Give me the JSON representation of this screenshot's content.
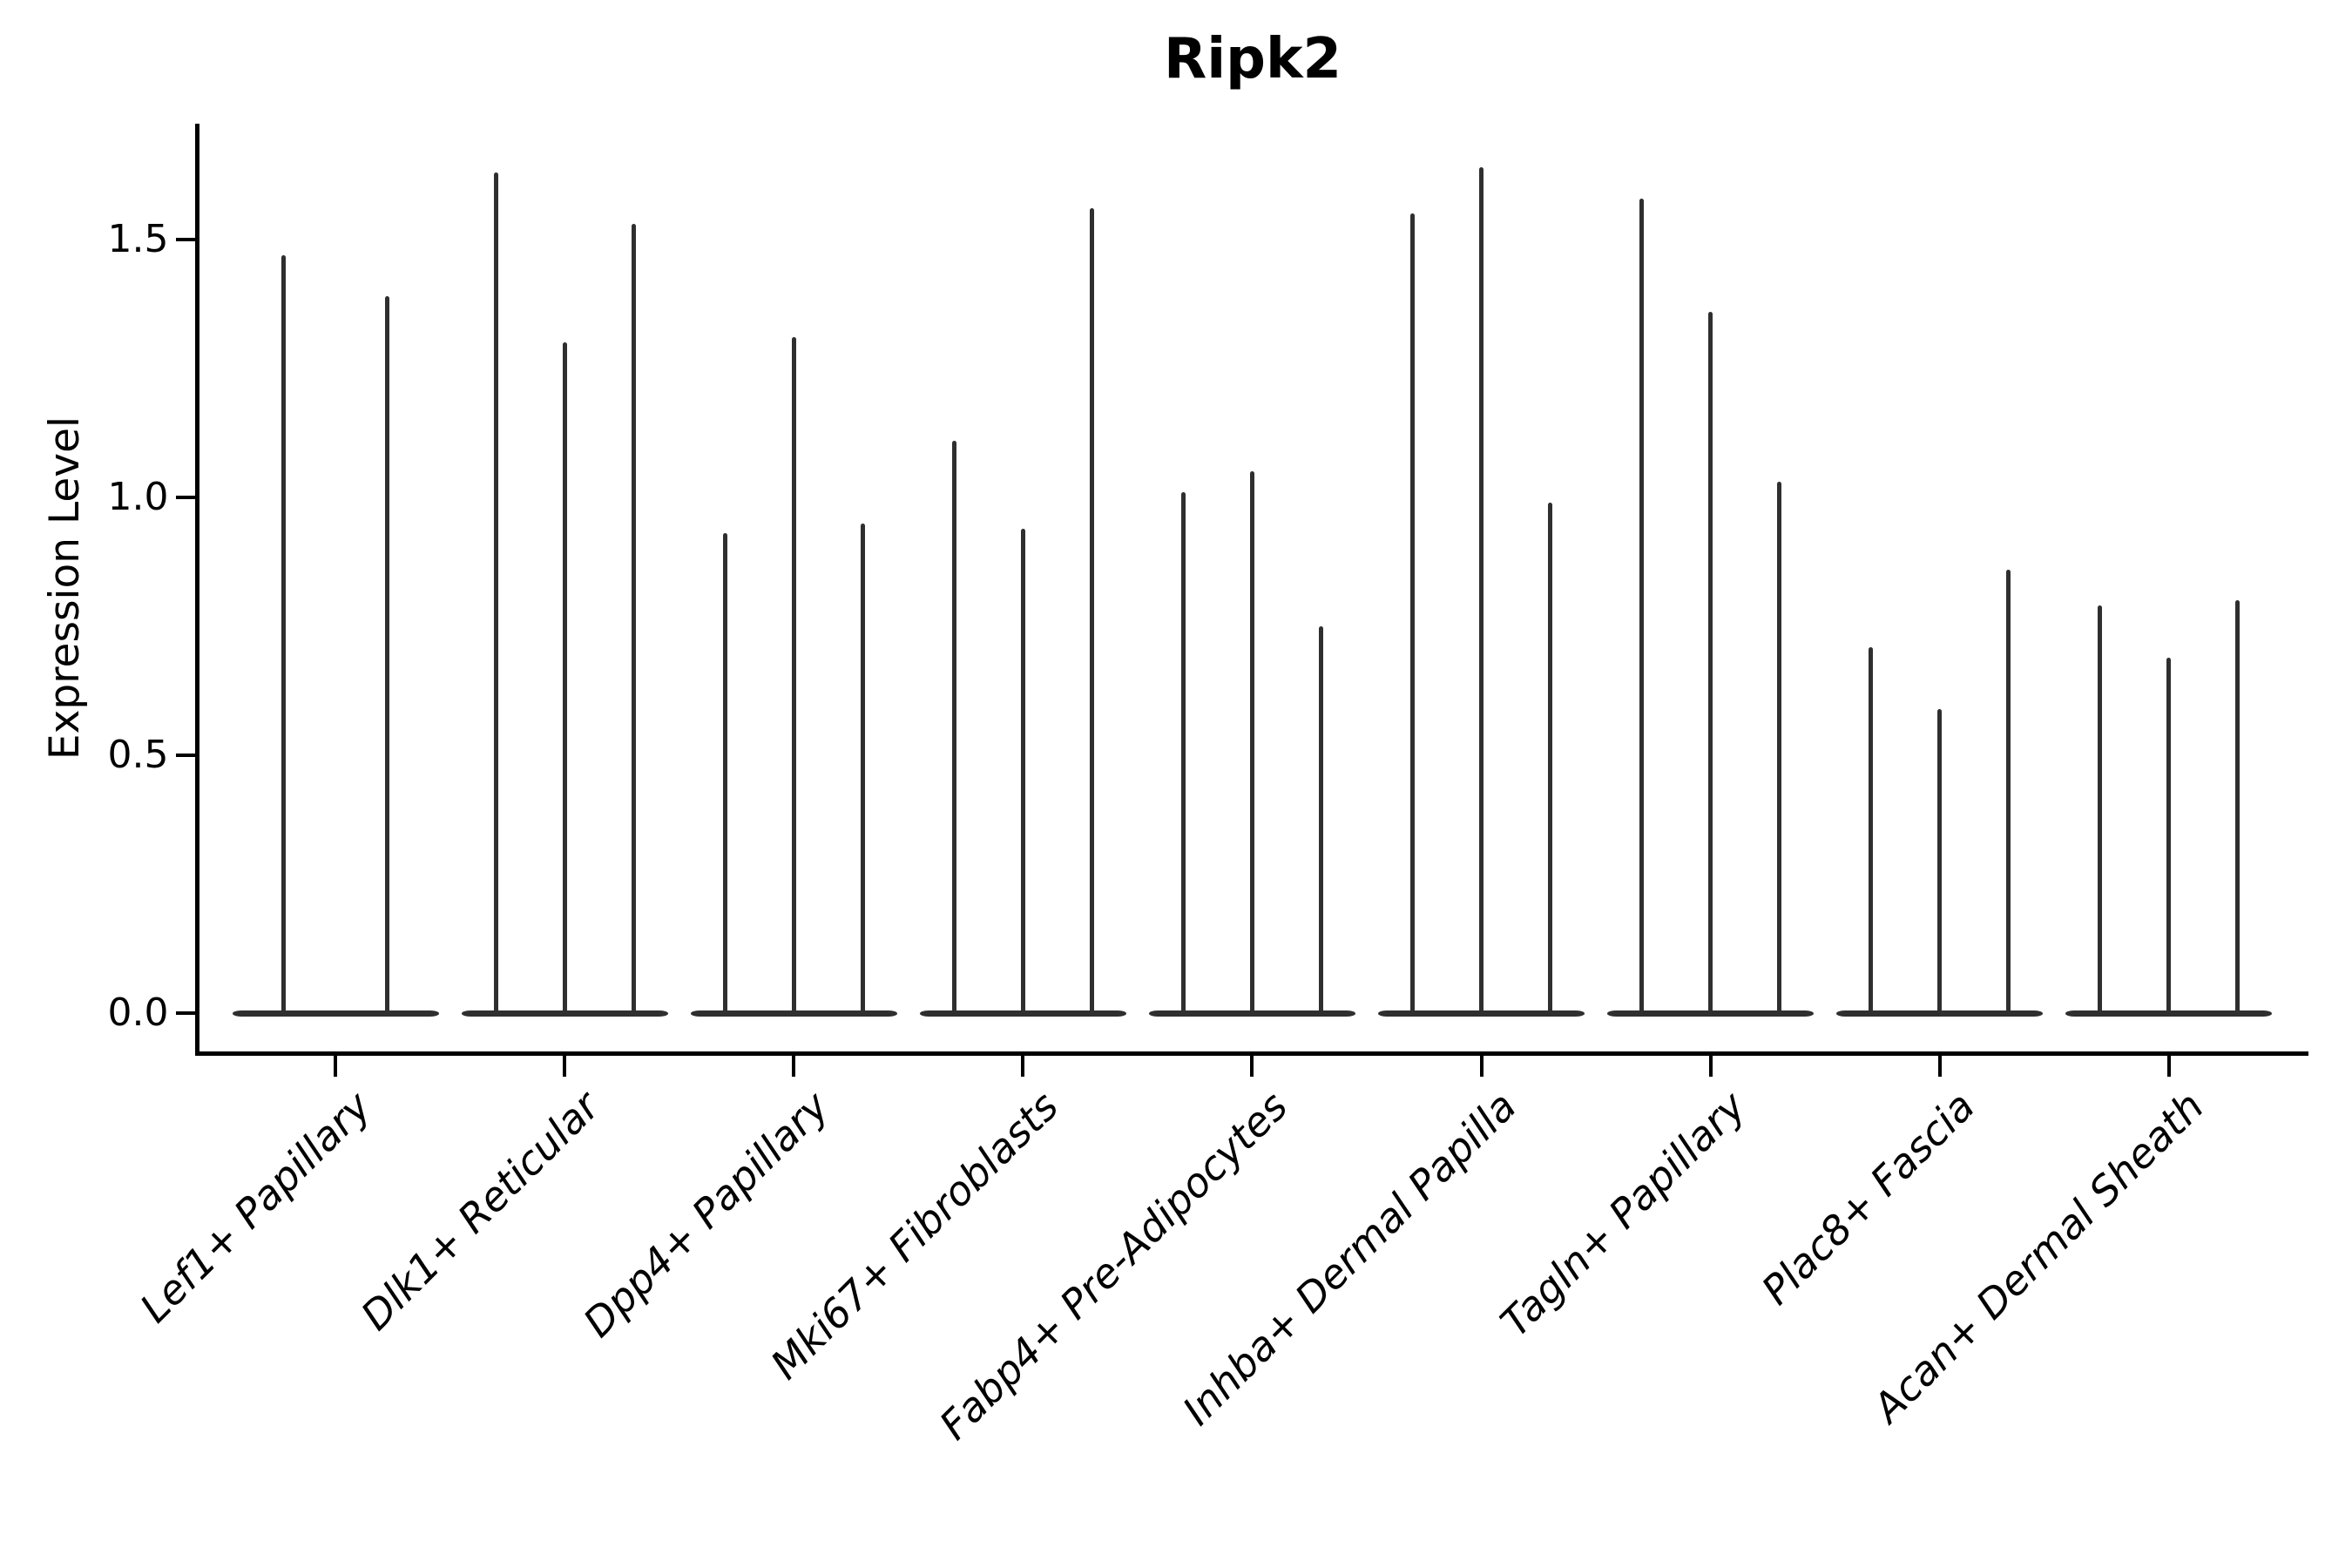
{
  "title": "Ripk2",
  "chart_data": {
    "type": "violin",
    "title": "Ripk2",
    "xlabel": "",
    "ylabel": "Expression Level",
    "ylim": [
      -0.08,
      1.73
    ],
    "yticks": [
      0,
      0.5,
      1.0,
      1.5
    ],
    "ytick_labels": [
      "0.0",
      "0.5",
      "1.0",
      "1.5"
    ],
    "grid": false,
    "legend_position": "none",
    "categories": [
      "Lef1+ Papillary",
      "Dlk1+ Reticular",
      "Dpp4+ Papillary",
      "Mki67+ Fibroblasts",
      "Fabp4+ Pre-Adipocytes",
      "Inhba+ Dermal Papilla",
      "Tagln+ Papillary",
      "Plac8+ Fascia",
      "Acan+ Dermal Sheath"
    ],
    "series": [
      {
        "category": "Lef1+ Papillary",
        "violin_peaks": [
          1.47,
          1.39
        ]
      },
      {
        "category": "Dlk1+ Reticular",
        "violin_peaks": [
          1.63,
          1.3,
          1.53
        ]
      },
      {
        "category": "Dpp4+ Papillary",
        "violin_peaks": [
          0.93,
          1.31,
          0.95
        ]
      },
      {
        "category": "Mki67+ Fibroblasts",
        "violin_peaks": [
          1.11,
          0.94,
          1.56
        ]
      },
      {
        "category": "Fabp4+ Pre-Adipocytes",
        "violin_peaks": [
          1.01,
          1.05,
          0.75
        ]
      },
      {
        "category": "Inhba+ Dermal Papilla",
        "violin_peaks": [
          1.55,
          1.64,
          0.99
        ]
      },
      {
        "category": "Tagln+ Papillary",
        "violin_peaks": [
          1.58,
          1.36,
          1.03
        ]
      },
      {
        "category": "Plac8+ Fascia",
        "violin_peaks": [
          0.71,
          0.59,
          0.86
        ]
      },
      {
        "category": "Acan+ Dermal Sheath",
        "violin_peaks": [
          0.79,
          0.69,
          0.8
        ]
      }
    ],
    "colors": {
      "violin": "#2f2f2f",
      "axis": "#000000",
      "text": "#000000",
      "background": "#ffffff"
    }
  }
}
